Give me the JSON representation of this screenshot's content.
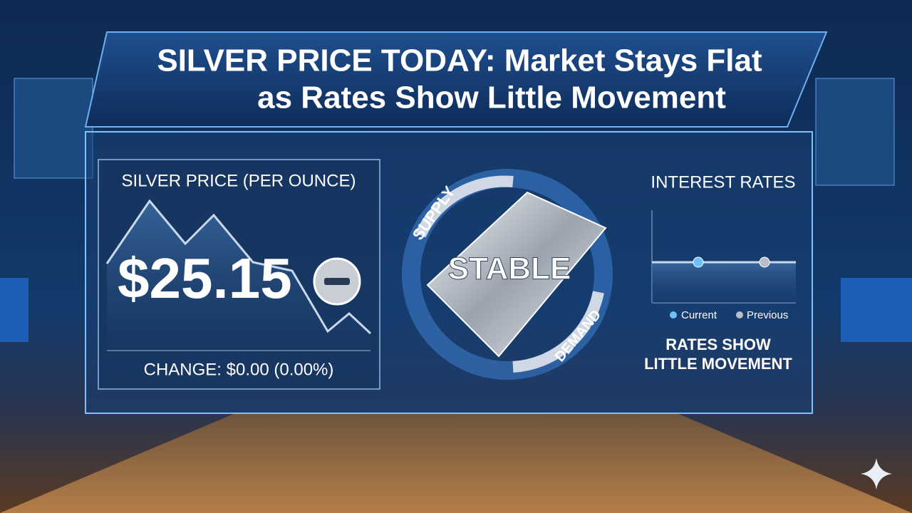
{
  "header": {
    "title_lines": [
      "SILVER PRICE TODAY: Market Stays Flat",
      "as Rates Show Little Movement"
    ]
  },
  "price_panel": {
    "title": "SILVER PRICE (PER OUNCE)",
    "price": "$25.15",
    "change": "CHANGE: $0.00 (0.00%)"
  },
  "center": {
    "top_label": "SUPPLY",
    "main_label": "STABLE",
    "bottom_label": "DEMAND"
  },
  "rates_panel": {
    "title": "INTEREST RATES",
    "legend": [
      "Current",
      "Previous"
    ],
    "caption_lines": [
      "RATES SHOW",
      "LITTLE MOVEMENT"
    ]
  }
}
